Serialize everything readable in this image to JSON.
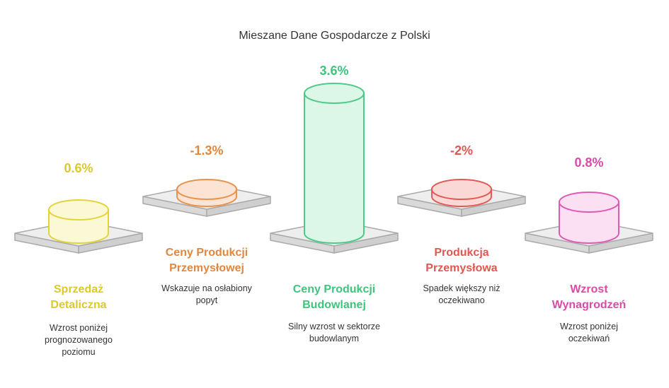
{
  "chart_data": {
    "type": "bar",
    "title": "Mieszane Dane Gospodarcze z Polski",
    "unit": "%",
    "categories": [
      "Sprzedaż Detaliczna",
      "Ceny Produkcji Przemysłowej",
      "Ceny Produkcji Budowlanej",
      "Produkcja Przemysłowa",
      "Wzrost Wynagrodzeń"
    ],
    "values": [
      0.6,
      -1.3,
      3.6,
      -2,
      0.8
    ],
    "value_labels": [
      "0.6%",
      "-1.3%",
      "3.6%",
      "-2%",
      "0.8%"
    ],
    "category_lines": [
      [
        "Sprzedaż",
        "Detaliczna"
      ],
      [
        "Ceny Produkcji",
        "Przemysłowej"
      ],
      [
        "Ceny Produkcji",
        "Budowlanej"
      ],
      [
        "Produkcja",
        "Przemysłowa"
      ],
      [
        "Wzrost",
        "Wynagrodzeń"
      ]
    ],
    "descriptions": [
      [
        "Wzrost poniżej",
        "prognozowanego",
        "poziomu"
      ],
      [
        "Wskazuje na osłabiony",
        "popyt"
      ],
      [
        "Silny wzrost w sektorze",
        "budowlanym"
      ],
      [
        "Spadek większy niż",
        "oczekiwano"
      ],
      [
        "Wzrost poniżej",
        "oczekiwań"
      ]
    ],
    "colors": [
      {
        "stroke": "#e3d43b",
        "fill": "#fbf8d6",
        "text": "#dcc92a"
      },
      {
        "stroke": "#e8924a",
        "fill": "#fbe4d3",
        "text": "#e0883f"
      },
      {
        "stroke": "#4dc98a",
        "fill": "#dcf7e8",
        "text": "#3fc47e"
      },
      {
        "stroke": "#e25a55",
        "fill": "#fad8d6",
        "text": "#e05752"
      },
      {
        "stroke": "#de5bb4",
        "fill": "#fbe0f3",
        "text": "#d94aa9"
      }
    ],
    "platform_color": "#aaaaaa"
  }
}
